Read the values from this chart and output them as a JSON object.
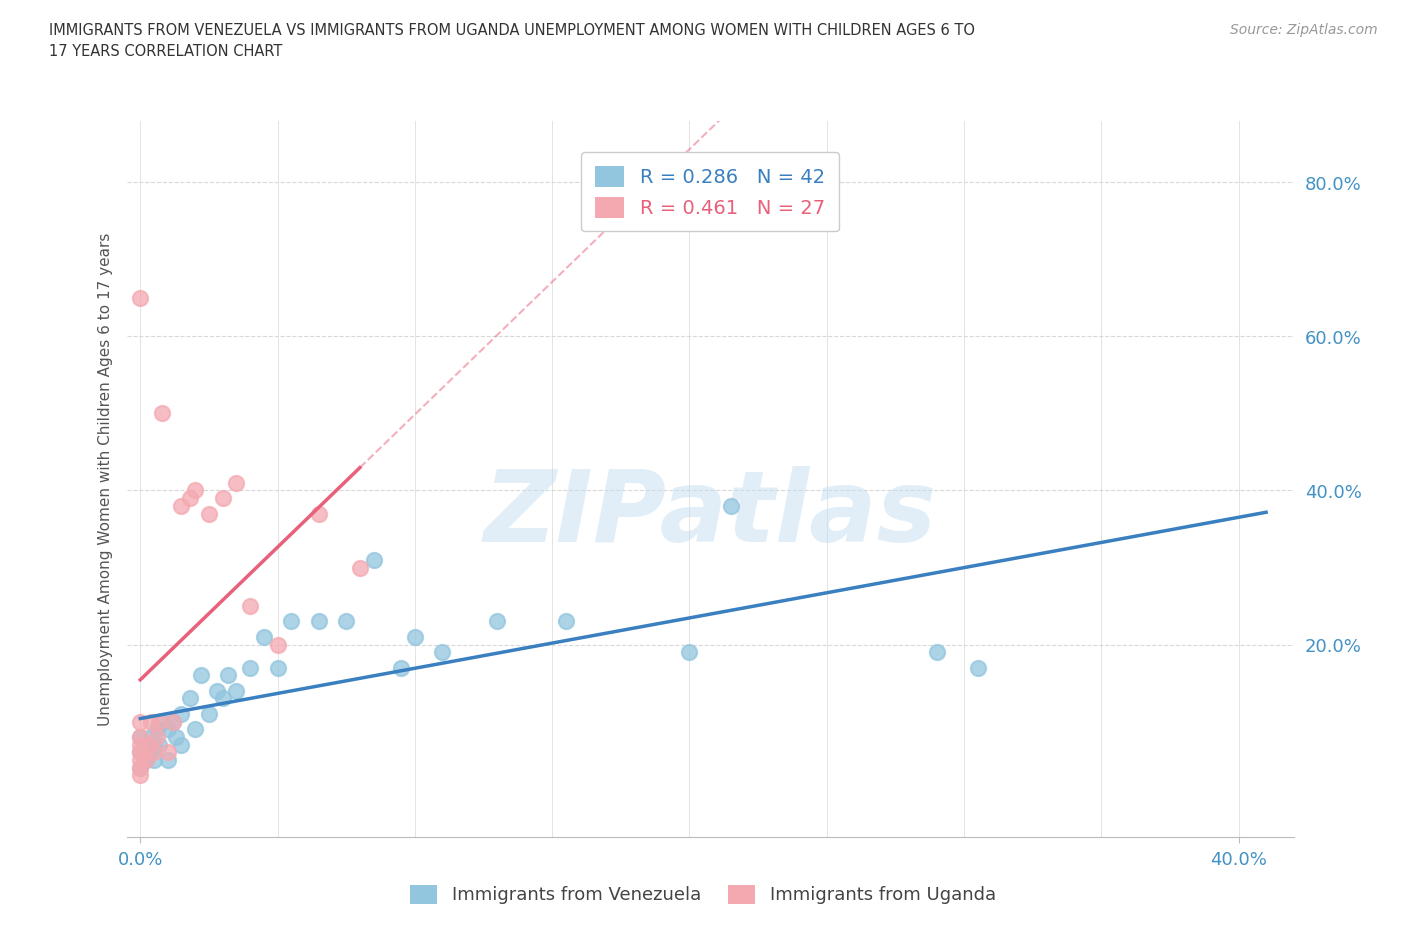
{
  "title": "IMMIGRANTS FROM VENEZUELA VS IMMIGRANTS FROM UGANDA UNEMPLOYMENT AMONG WOMEN WITH CHILDREN AGES 6 TO\n17 YEARS CORRELATION CHART",
  "source_text": "Source: ZipAtlas.com",
  "ylabel": "Unemployment Among Women with Children Ages 6 to 17 years",
  "y_ticks_right": [
    0.2,
    0.4,
    0.6,
    0.8
  ],
  "y_tick_labels_right": [
    "20.0%",
    "40.0%",
    "60.0%",
    "80.0%"
  ],
  "xlim": [
    -0.005,
    0.42
  ],
  "ylim": [
    -0.05,
    0.88
  ],
  "venezuela_color": "#92c5de",
  "uganda_color": "#f4a9b0",
  "venezuela_line_color": "#3a7fbf",
  "uganda_line_color": "#e8607a",
  "R_venezuela": 0.286,
  "N_venezuela": 42,
  "R_uganda": 0.461,
  "N_uganda": 27,
  "legend_venezuela": "Immigrants from Venezuela",
  "legend_uganda": "Immigrants from Uganda",
  "watermark": "ZIPatlas",
  "venezuela_x": [
    0.0,
    0.0,
    0.0,
    0.002,
    0.002,
    0.003,
    0.004,
    0.005,
    0.005,
    0.006,
    0.007,
    0.008,
    0.01,
    0.01,
    0.012,
    0.013,
    0.015,
    0.015,
    0.018,
    0.02,
    0.022,
    0.025,
    0.028,
    0.03,
    0.032,
    0.035,
    0.04,
    0.045,
    0.05,
    0.055,
    0.065,
    0.075,
    0.085,
    0.095,
    0.1,
    0.11,
    0.13,
    0.155,
    0.2,
    0.215,
    0.29,
    0.305
  ],
  "venezuela_y": [
    0.04,
    0.06,
    0.08,
    0.05,
    0.07,
    0.06,
    0.08,
    0.05,
    0.07,
    0.09,
    0.07,
    0.1,
    0.05,
    0.09,
    0.1,
    0.08,
    0.07,
    0.11,
    0.13,
    0.09,
    0.16,
    0.11,
    0.14,
    0.13,
    0.16,
    0.14,
    0.17,
    0.21,
    0.17,
    0.23,
    0.23,
    0.23,
    0.31,
    0.17,
    0.21,
    0.19,
    0.23,
    0.23,
    0.19,
    0.38,
    0.19,
    0.17
  ],
  "uganda_x": [
    0.0,
    0.0,
    0.0,
    0.0,
    0.0,
    0.0,
    0.0,
    0.0,
    0.002,
    0.003,
    0.004,
    0.005,
    0.006,
    0.007,
    0.008,
    0.01,
    0.012,
    0.015,
    0.018,
    0.02,
    0.025,
    0.03,
    0.035,
    0.04,
    0.05,
    0.065,
    0.08
  ],
  "uganda_y": [
    0.03,
    0.04,
    0.05,
    0.06,
    0.07,
    0.08,
    0.1,
    0.65,
    0.05,
    0.07,
    0.1,
    0.06,
    0.08,
    0.1,
    0.5,
    0.06,
    0.1,
    0.38,
    0.39,
    0.4,
    0.37,
    0.39,
    0.41,
    0.25,
    0.2,
    0.37,
    0.3
  ],
  "background_color": "#ffffff",
  "grid_color": "#d8d8d8",
  "vgrid_ticks": [
    0.0,
    0.05,
    0.1,
    0.15,
    0.2,
    0.25,
    0.3,
    0.35,
    0.4
  ]
}
